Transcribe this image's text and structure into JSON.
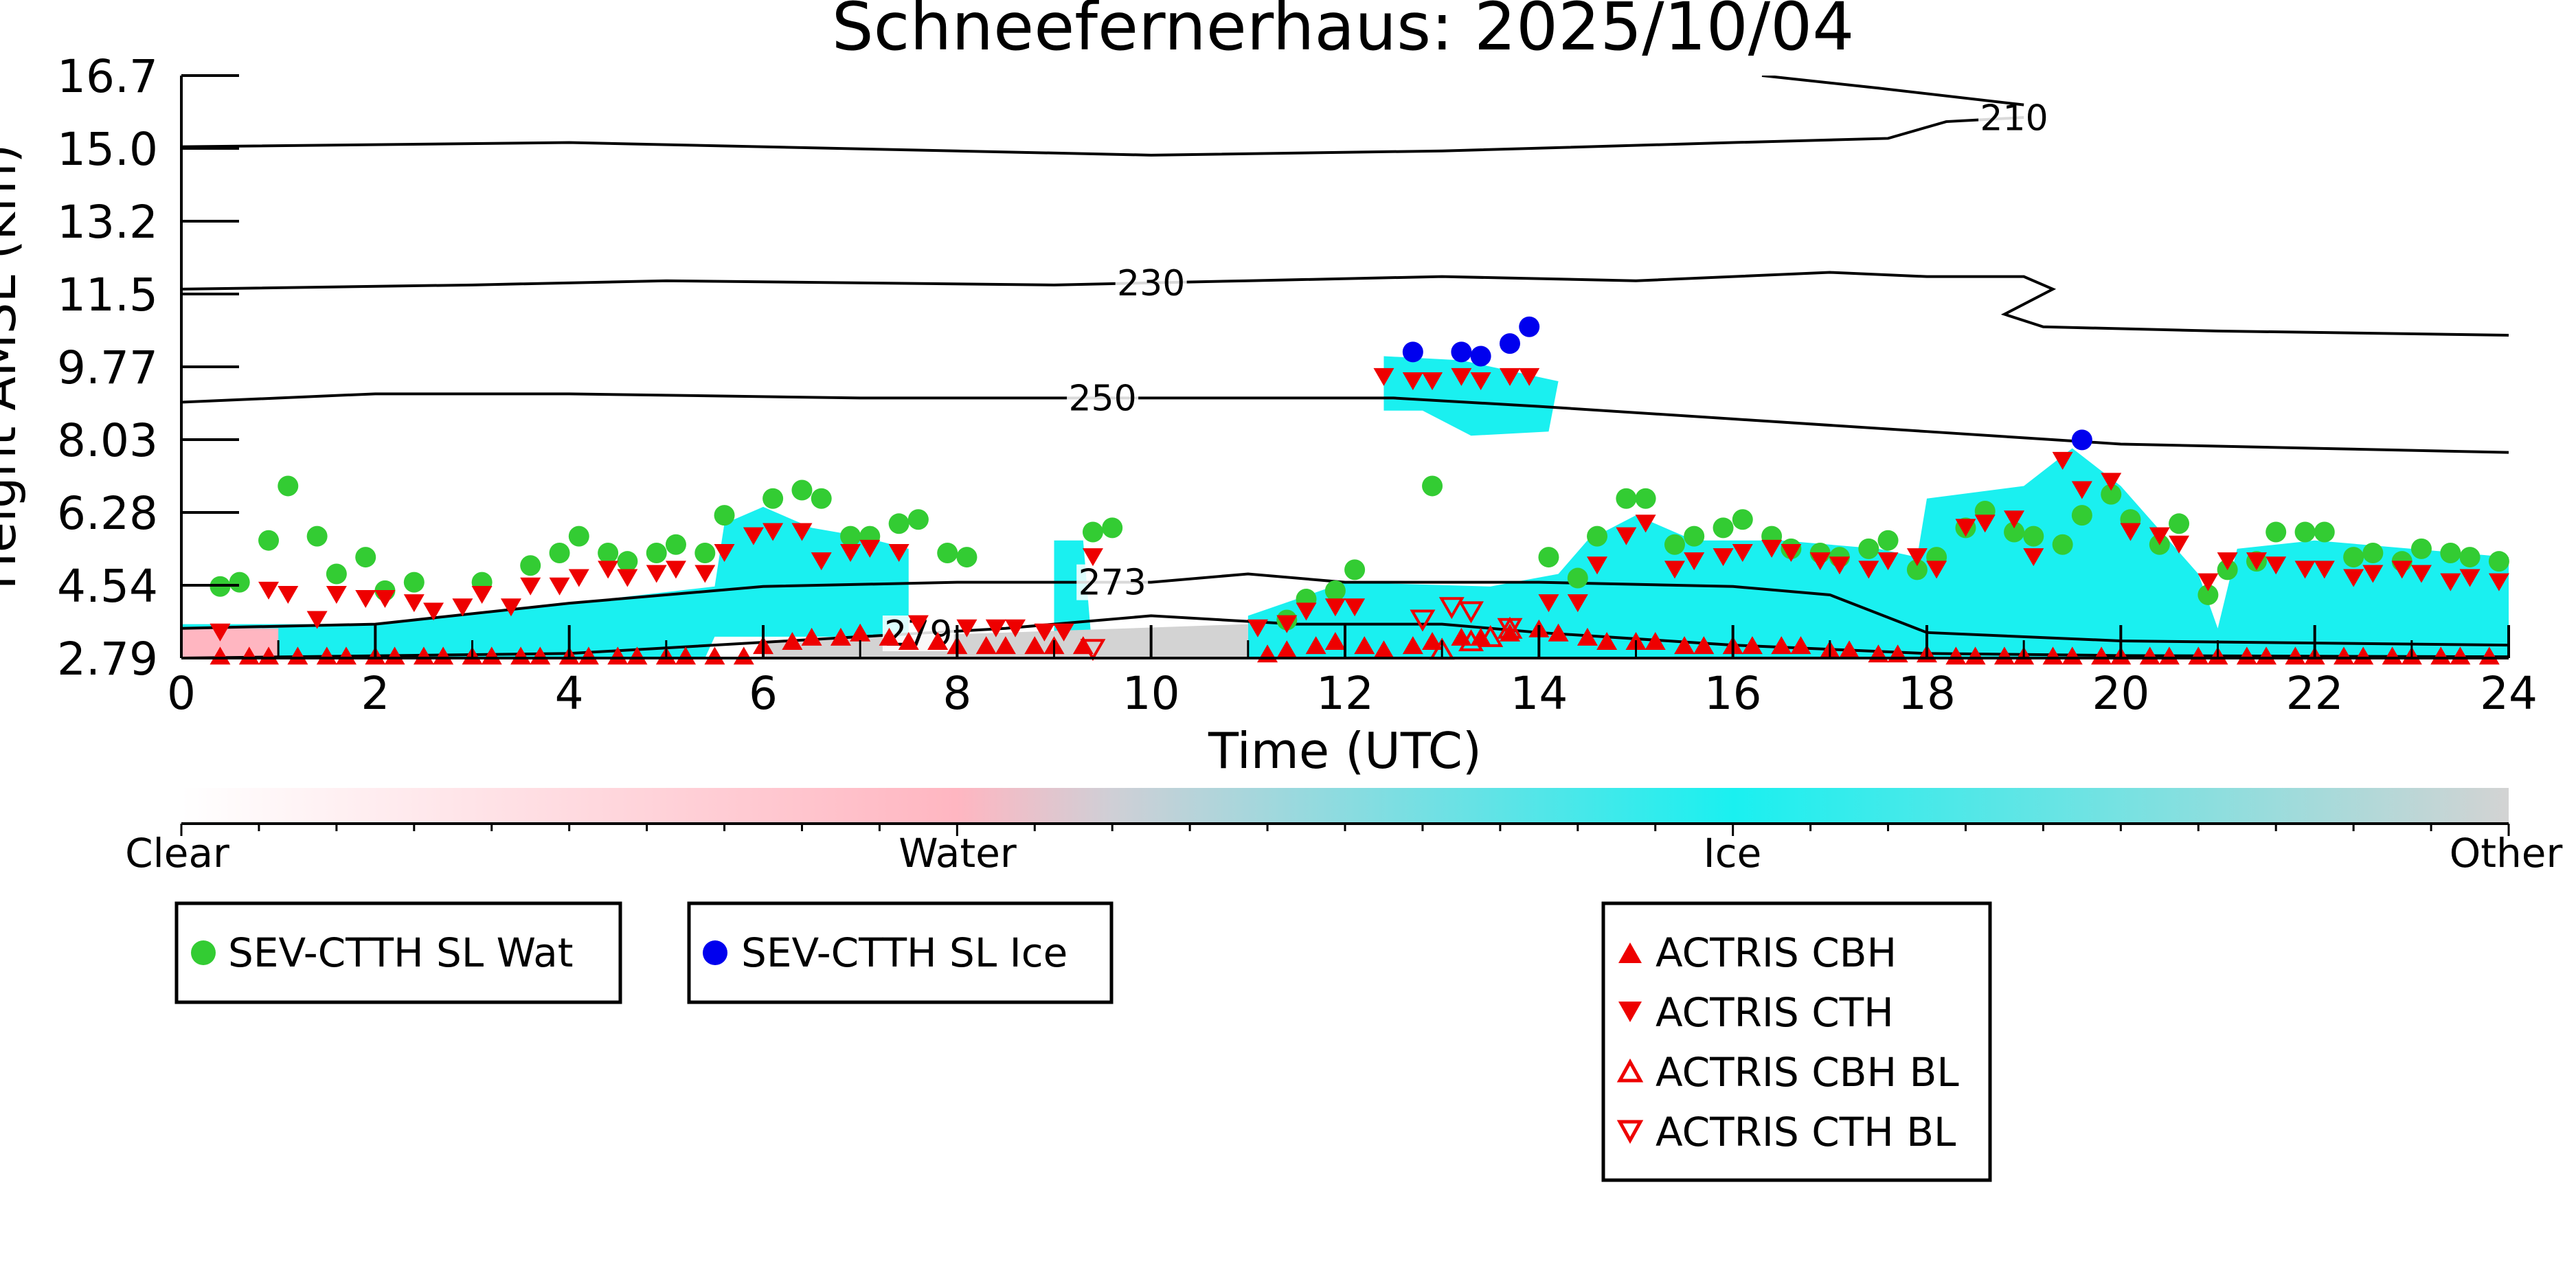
{
  "chart_data": {
    "type": "scatter",
    "title": "Schneefernerhaus: 2025/10/04",
    "xlabel": "Time (UTC)",
    "ylabel": "Height AMSL (km)",
    "xlim": [
      0,
      24
    ],
    "ylim": [
      2.79,
      16.7
    ],
    "x_ticks": [
      "0",
      "2",
      "4",
      "6",
      "8",
      "10",
      "12",
      "14",
      "16",
      "18",
      "20",
      "22",
      "24"
    ],
    "y_ticks": [
      "2.79",
      "4.54",
      "6.28",
      "8.03",
      "9.77",
      "11.5",
      "13.2",
      "15.0",
      "16.7"
    ],
    "colorbar": {
      "labels": [
        "Clear",
        "Water",
        "Ice",
        "Other"
      ],
      "colors": [
        "#ffffff",
        "#ffb6c1",
        "#1af0f0",
        "#d3d3d3"
      ]
    },
    "isotherms": [
      {
        "label": "210",
        "label_x": 18.9,
        "points": [
          [
            0,
            15.0
          ],
          [
            4,
            15.1
          ],
          [
            8,
            14.9
          ],
          [
            10,
            14.8
          ],
          [
            13,
            14.9
          ],
          [
            16,
            15.1
          ],
          [
            17.6,
            15.2
          ],
          [
            18.2,
            15.6
          ],
          [
            19.0,
            15.7
          ]
        ]
      },
      {
        "label": "210",
        "label_x": null,
        "points": [
          [
            16.3,
            16.7
          ],
          [
            17.5,
            16.4
          ],
          [
            19.0,
            16.0
          ]
        ]
      },
      {
        "label": "230",
        "label_x": 10.0,
        "points": [
          [
            0,
            11.6
          ],
          [
            3,
            11.7
          ],
          [
            5,
            11.8
          ],
          [
            9,
            11.7
          ],
          [
            11,
            11.8
          ],
          [
            13,
            11.9
          ],
          [
            15,
            11.8
          ],
          [
            17,
            12.0
          ],
          [
            18,
            11.9
          ],
          [
            19,
            11.9
          ],
          [
            19.3,
            11.6
          ],
          [
            18.8,
            11.0
          ],
          [
            19.2,
            10.7
          ],
          [
            21,
            10.6
          ],
          [
            24,
            10.5
          ]
        ]
      },
      {
        "label": "250",
        "label_x": 9.5,
        "points": [
          [
            0,
            8.9
          ],
          [
            2,
            9.1
          ],
          [
            4,
            9.1
          ],
          [
            7,
            9.0
          ],
          [
            10,
            9.0
          ],
          [
            12.5,
            9.0
          ],
          [
            14,
            8.8
          ],
          [
            16,
            8.5
          ],
          [
            18,
            8.2
          ],
          [
            20,
            7.9
          ],
          [
            22,
            7.8
          ],
          [
            24,
            7.7
          ]
        ]
      },
      {
        "label": "273",
        "label_x": 9.6,
        "points": [
          [
            0,
            3.5
          ],
          [
            2,
            3.6
          ],
          [
            4,
            4.1
          ],
          [
            6,
            4.5
          ],
          [
            8,
            4.6
          ],
          [
            10,
            4.6
          ],
          [
            11,
            4.8
          ],
          [
            12,
            4.6
          ],
          [
            14,
            4.6
          ],
          [
            16,
            4.5
          ],
          [
            17,
            4.3
          ],
          [
            18,
            3.4
          ],
          [
            20,
            3.2
          ],
          [
            24,
            3.1
          ]
        ]
      },
      {
        "label": "279",
        "label_x": 7.6,
        "points": [
          [
            0,
            2.79
          ],
          [
            4,
            2.9
          ],
          [
            7,
            3.3
          ],
          [
            8.5,
            3.5
          ],
          [
            10,
            3.8
          ],
          [
            11.5,
            3.6
          ],
          [
            13,
            3.6
          ],
          [
            14,
            3.4
          ],
          [
            16,
            3.1
          ],
          [
            18,
            2.9
          ],
          [
            20,
            2.85
          ],
          [
            24,
            2.82
          ]
        ]
      }
    ],
    "cloud_regions": [
      {
        "kind": "ice",
        "points": [
          [
            0,
            2.79
          ],
          [
            0,
            3.6
          ],
          [
            2,
            3.6
          ],
          [
            4,
            4.1
          ],
          [
            5.5,
            4.5
          ],
          [
            5.6,
            6.0
          ],
          [
            6.0,
            6.4
          ],
          [
            6.5,
            5.9
          ],
          [
            7.0,
            5.7
          ],
          [
            7.5,
            5.4
          ],
          [
            7.5,
            3.3
          ],
          [
            5.5,
            3.3
          ],
          [
            5.4,
            2.79
          ]
        ]
      },
      {
        "kind": "ice",
        "points": [
          [
            9.0,
            2.79
          ],
          [
            9.0,
            5.6
          ],
          [
            9.3,
            5.6
          ],
          [
            9.4,
            2.79
          ]
        ]
      },
      {
        "kind": "ice",
        "points": [
          [
            11.0,
            2.79
          ],
          [
            11.0,
            3.8
          ],
          [
            12.0,
            4.6
          ],
          [
            13.5,
            4.5
          ],
          [
            14.2,
            4.8
          ],
          [
            14.5,
            5.6
          ],
          [
            15.0,
            6.2
          ],
          [
            15.6,
            5.6
          ],
          [
            16.5,
            5.6
          ],
          [
            17.5,
            5.4
          ],
          [
            17.9,
            5.2
          ],
          [
            18.0,
            6.6
          ],
          [
            19.0,
            6.9
          ],
          [
            19.5,
            7.8
          ],
          [
            20.0,
            6.9
          ],
          [
            20.8,
            4.8
          ],
          [
            21.0,
            3.5
          ],
          [
            21.2,
            5.4
          ],
          [
            22.0,
            5.6
          ],
          [
            24.0,
            5.2
          ],
          [
            24.0,
            2.79
          ]
        ]
      },
      {
        "kind": "ice",
        "points": [
          [
            12.4,
            8.7
          ],
          [
            12.4,
            10.0
          ],
          [
            13.2,
            9.9
          ],
          [
            14.2,
            9.4
          ],
          [
            14.1,
            8.2
          ],
          [
            13.3,
            8.1
          ],
          [
            12.8,
            8.7
          ]
        ]
      },
      {
        "kind": "water",
        "points": [
          [
            0,
            2.79
          ],
          [
            0,
            3.5
          ],
          [
            1.0,
            3.5
          ],
          [
            1.0,
            2.79
          ]
        ]
      },
      {
        "kind": "other",
        "points": [
          [
            6.0,
            2.79
          ],
          [
            6.0,
            3.2
          ],
          [
            11.0,
            3.6
          ],
          [
            11.0,
            2.79
          ]
        ]
      }
    ],
    "series": [
      {
        "name": "SEV-CTTH SL Wat",
        "marker": "circle",
        "color": "#33cc33",
        "x": [
          0.4,
          0.6,
          0.9,
          1.1,
          1.4,
          1.6,
          1.9,
          2.1,
          2.4,
          3.1,
          3.6,
          3.9,
          4.1,
          4.4,
          4.6,
          4.9,
          5.1,
          5.4,
          5.6,
          6.1,
          6.4,
          6.6,
          6.9,
          7.1,
          7.4,
          7.6,
          7.9,
          8.1,
          9.4,
          9.6,
          11.4,
          11.6,
          11.9,
          12.1,
          12.9,
          14.1,
          14.4,
          14.6,
          14.9,
          15.1,
          15.4,
          15.6,
          15.9,
          16.1,
          16.4,
          16.6,
          16.9,
          17.1,
          17.4,
          17.6,
          17.9,
          18.1,
          18.4,
          18.6,
          18.9,
          19.1,
          19.4,
          19.6,
          19.9,
          20.1,
          20.4,
          20.6,
          20.9,
          21.1,
          21.4,
          21.6,
          21.9,
          22.1,
          22.4,
          22.6,
          22.9,
          23.1,
          23.4,
          23.6,
          23.9
        ],
        "y": [
          4.5,
          4.6,
          5.6,
          6.9,
          5.7,
          4.8,
          5.2,
          4.4,
          4.6,
          4.6,
          5.0,
          5.3,
          5.7,
          5.3,
          5.1,
          5.3,
          5.5,
          5.3,
          6.2,
          6.6,
          6.8,
          6.6,
          5.7,
          5.7,
          6.0,
          6.1,
          5.3,
          5.2,
          5.8,
          5.9,
          3.7,
          4.2,
          4.4,
          4.9,
          6.9,
          5.2,
          4.7,
          5.7,
          6.6,
          6.6,
          5.5,
          5.7,
          5.9,
          6.1,
          5.7,
          5.4,
          5.3,
          5.2,
          5.4,
          5.6,
          4.9,
          5.2,
          5.9,
          6.3,
          5.8,
          5.7,
          5.5,
          6.2,
          6.7,
          6.1,
          5.5,
          6.0,
          4.3,
          4.9,
          5.1,
          5.8,
          5.8,
          5.8,
          5.2,
          5.3,
          5.1,
          5.4,
          5.3,
          5.2,
          5.1
        ]
      },
      {
        "name": "SEV-CTTH SL Ice",
        "marker": "circle",
        "color": "#0000ee",
        "x": [
          12.7,
          13.2,
          13.4,
          13.7,
          13.9,
          19.6
        ],
        "y": [
          10.1,
          10.1,
          10.0,
          10.3,
          10.7,
          8.0
        ]
      },
      {
        "name": "ACTRIS CBH",
        "marker": "triangle-up",
        "color": "#ee0000",
        "filled": true,
        "x": [
          0.4,
          0.7,
          0.9,
          1.2,
          1.5,
          1.7,
          2.0,
          2.2,
          2.5,
          2.7,
          3.0,
          3.2,
          3.5,
          3.7,
          4.0,
          4.2,
          4.5,
          4.7,
          5.0,
          5.2,
          5.5,
          5.8,
          6.0,
          6.3,
          6.5,
          6.8,
          7.0,
          7.3,
          7.5,
          7.8,
          8.0,
          8.3,
          8.5,
          8.8,
          9.0,
          9.3,
          11.2,
          11.4,
          11.7,
          11.9,
          12.2,
          12.4,
          12.7,
          12.9,
          13.2,
          13.4,
          13.7,
          14.0,
          14.2,
          14.5,
          14.7,
          15.0,
          15.2,
          15.5,
          15.7,
          16.0,
          16.2,
          16.5,
          16.7,
          17.0,
          17.2,
          17.5,
          17.7,
          18.0,
          18.3,
          18.5,
          18.8,
          19.0,
          19.3,
          19.5,
          19.8,
          20.0,
          20.3,
          20.5,
          20.8,
          21.0,
          21.3,
          21.5,
          21.8,
          22.0,
          22.3,
          22.5,
          22.8,
          23.0,
          23.3,
          23.5,
          23.8
        ],
        "y": [
          2.85,
          2.85,
          2.85,
          2.85,
          2.85,
          2.85,
          2.85,
          2.85,
          2.85,
          2.85,
          2.85,
          2.85,
          2.85,
          2.85,
          2.85,
          2.85,
          2.85,
          2.85,
          2.85,
          2.85,
          2.85,
          2.85,
          3.1,
          3.2,
          3.3,
          3.3,
          3.4,
          3.3,
          3.2,
          3.2,
          3.1,
          3.1,
          3.1,
          3.1,
          3.1,
          3.1,
          2.9,
          3.0,
          3.1,
          3.2,
          3.1,
          3.0,
          3.1,
          3.2,
          3.3,
          3.3,
          3.4,
          3.5,
          3.4,
          3.3,
          3.2,
          3.2,
          3.2,
          3.1,
          3.1,
          3.1,
          3.1,
          3.1,
          3.1,
          3.0,
          3.0,
          2.9,
          2.9,
          2.9,
          2.85,
          2.85,
          2.85,
          2.85,
          2.85,
          2.85,
          2.85,
          2.85,
          2.85,
          2.85,
          2.85,
          2.85,
          2.85,
          2.85,
          2.85,
          2.85,
          2.85,
          2.85,
          2.85,
          2.85,
          2.85,
          2.85,
          2.85
        ]
      },
      {
        "name": "ACTRIS CTH",
        "marker": "triangle-down",
        "color": "#ee0000",
        "filled": true,
        "x": [
          0.4,
          0.9,
          1.1,
          1.4,
          1.6,
          1.9,
          2.1,
          2.4,
          2.6,
          2.9,
          3.1,
          3.4,
          3.6,
          3.9,
          4.1,
          4.4,
          4.6,
          4.9,
          5.1,
          5.4,
          5.6,
          5.9,
          6.1,
          6.4,
          6.6,
          6.9,
          7.1,
          7.4,
          7.6,
          8.1,
          8.4,
          8.6,
          8.9,
          9.1,
          9.4,
          11.1,
          11.4,
          11.6,
          11.9,
          12.1,
          12.4,
          12.7,
          12.9,
          13.2,
          13.4,
          13.7,
          13.9,
          14.1,
          14.4,
          14.6,
          14.9,
          15.1,
          15.4,
          15.6,
          15.9,
          16.1,
          16.4,
          16.6,
          16.9,
          17.1,
          17.4,
          17.6,
          17.9,
          18.1,
          18.4,
          18.6,
          18.9,
          19.1,
          19.4,
          19.6,
          19.9,
          20.1,
          20.4,
          20.6,
          20.9,
          21.1,
          21.4,
          21.6,
          21.9,
          22.1,
          22.4,
          22.6,
          22.9,
          23.1,
          23.4,
          23.6,
          23.9
        ],
        "y": [
          3.4,
          4.4,
          4.3,
          3.7,
          4.3,
          4.2,
          4.2,
          4.1,
          3.9,
          4.0,
          4.3,
          4.0,
          4.5,
          4.5,
          4.7,
          4.9,
          4.7,
          4.8,
          4.9,
          4.8,
          5.3,
          5.7,
          5.8,
          5.8,
          5.1,
          5.3,
          5.4,
          5.3,
          3.6,
          3.5,
          3.5,
          3.5,
          3.4,
          3.4,
          5.2,
          3.5,
          3.6,
          3.9,
          4.0,
          4.0,
          9.5,
          9.4,
          9.4,
          9.5,
          9.4,
          9.5,
          9.5,
          4.1,
          4.1,
          5.0,
          5.7,
          6.0,
          4.9,
          5.1,
          5.2,
          5.3,
          5.4,
          5.3,
          5.1,
          5.0,
          4.9,
          5.1,
          5.2,
          4.9,
          5.9,
          6.0,
          6.1,
          5.2,
          7.5,
          6.8,
          7.0,
          5.8,
          5.7,
          5.5,
          4.6,
          5.1,
          5.1,
          5.0,
          4.9,
          4.9,
          4.7,
          4.8,
          4.9,
          4.8,
          4.6,
          4.7,
          4.6
        ]
      },
      {
        "name": "ACTRIS CBH BL",
        "marker": "triangle-up",
        "color": "#ee0000",
        "filled": false,
        "x": [
          13.0,
          13.3,
          13.5,
          13.7
        ],
        "y": [
          3.0,
          3.2,
          3.3,
          3.5
        ]
      },
      {
        "name": "ACTRIS CTH BL",
        "marker": "triangle-down",
        "color": "#ee0000",
        "filled": false,
        "x": [
          9.4,
          12.8,
          13.1,
          13.3,
          13.7
        ],
        "y": [
          3.0,
          3.7,
          4.0,
          3.9,
          3.5
        ]
      }
    ]
  },
  "legends": [
    {
      "items": [
        {
          "label": "SEV-CTTH SL Wat",
          "marker": "circle",
          "color": "#33cc33",
          "filled": true
        }
      ]
    },
    {
      "items": [
        {
          "label": "SEV-CTTH SL Ice",
          "marker": "circle",
          "color": "#0000ee",
          "filled": true
        }
      ]
    },
    {
      "items": [
        {
          "label": "ACTRIS CBH",
          "marker": "triangle-up",
          "color": "#ee0000",
          "filled": true
        },
        {
          "label": "ACTRIS CTH",
          "marker": "triangle-down",
          "color": "#ee0000",
          "filled": true
        },
        {
          "label": "ACTRIS CBH BL",
          "marker": "triangle-up",
          "color": "#ee0000",
          "filled": false
        },
        {
          "label": "ACTRIS CTH BL",
          "marker": "triangle-down",
          "color": "#ee0000",
          "filled": false
        }
      ]
    }
  ]
}
